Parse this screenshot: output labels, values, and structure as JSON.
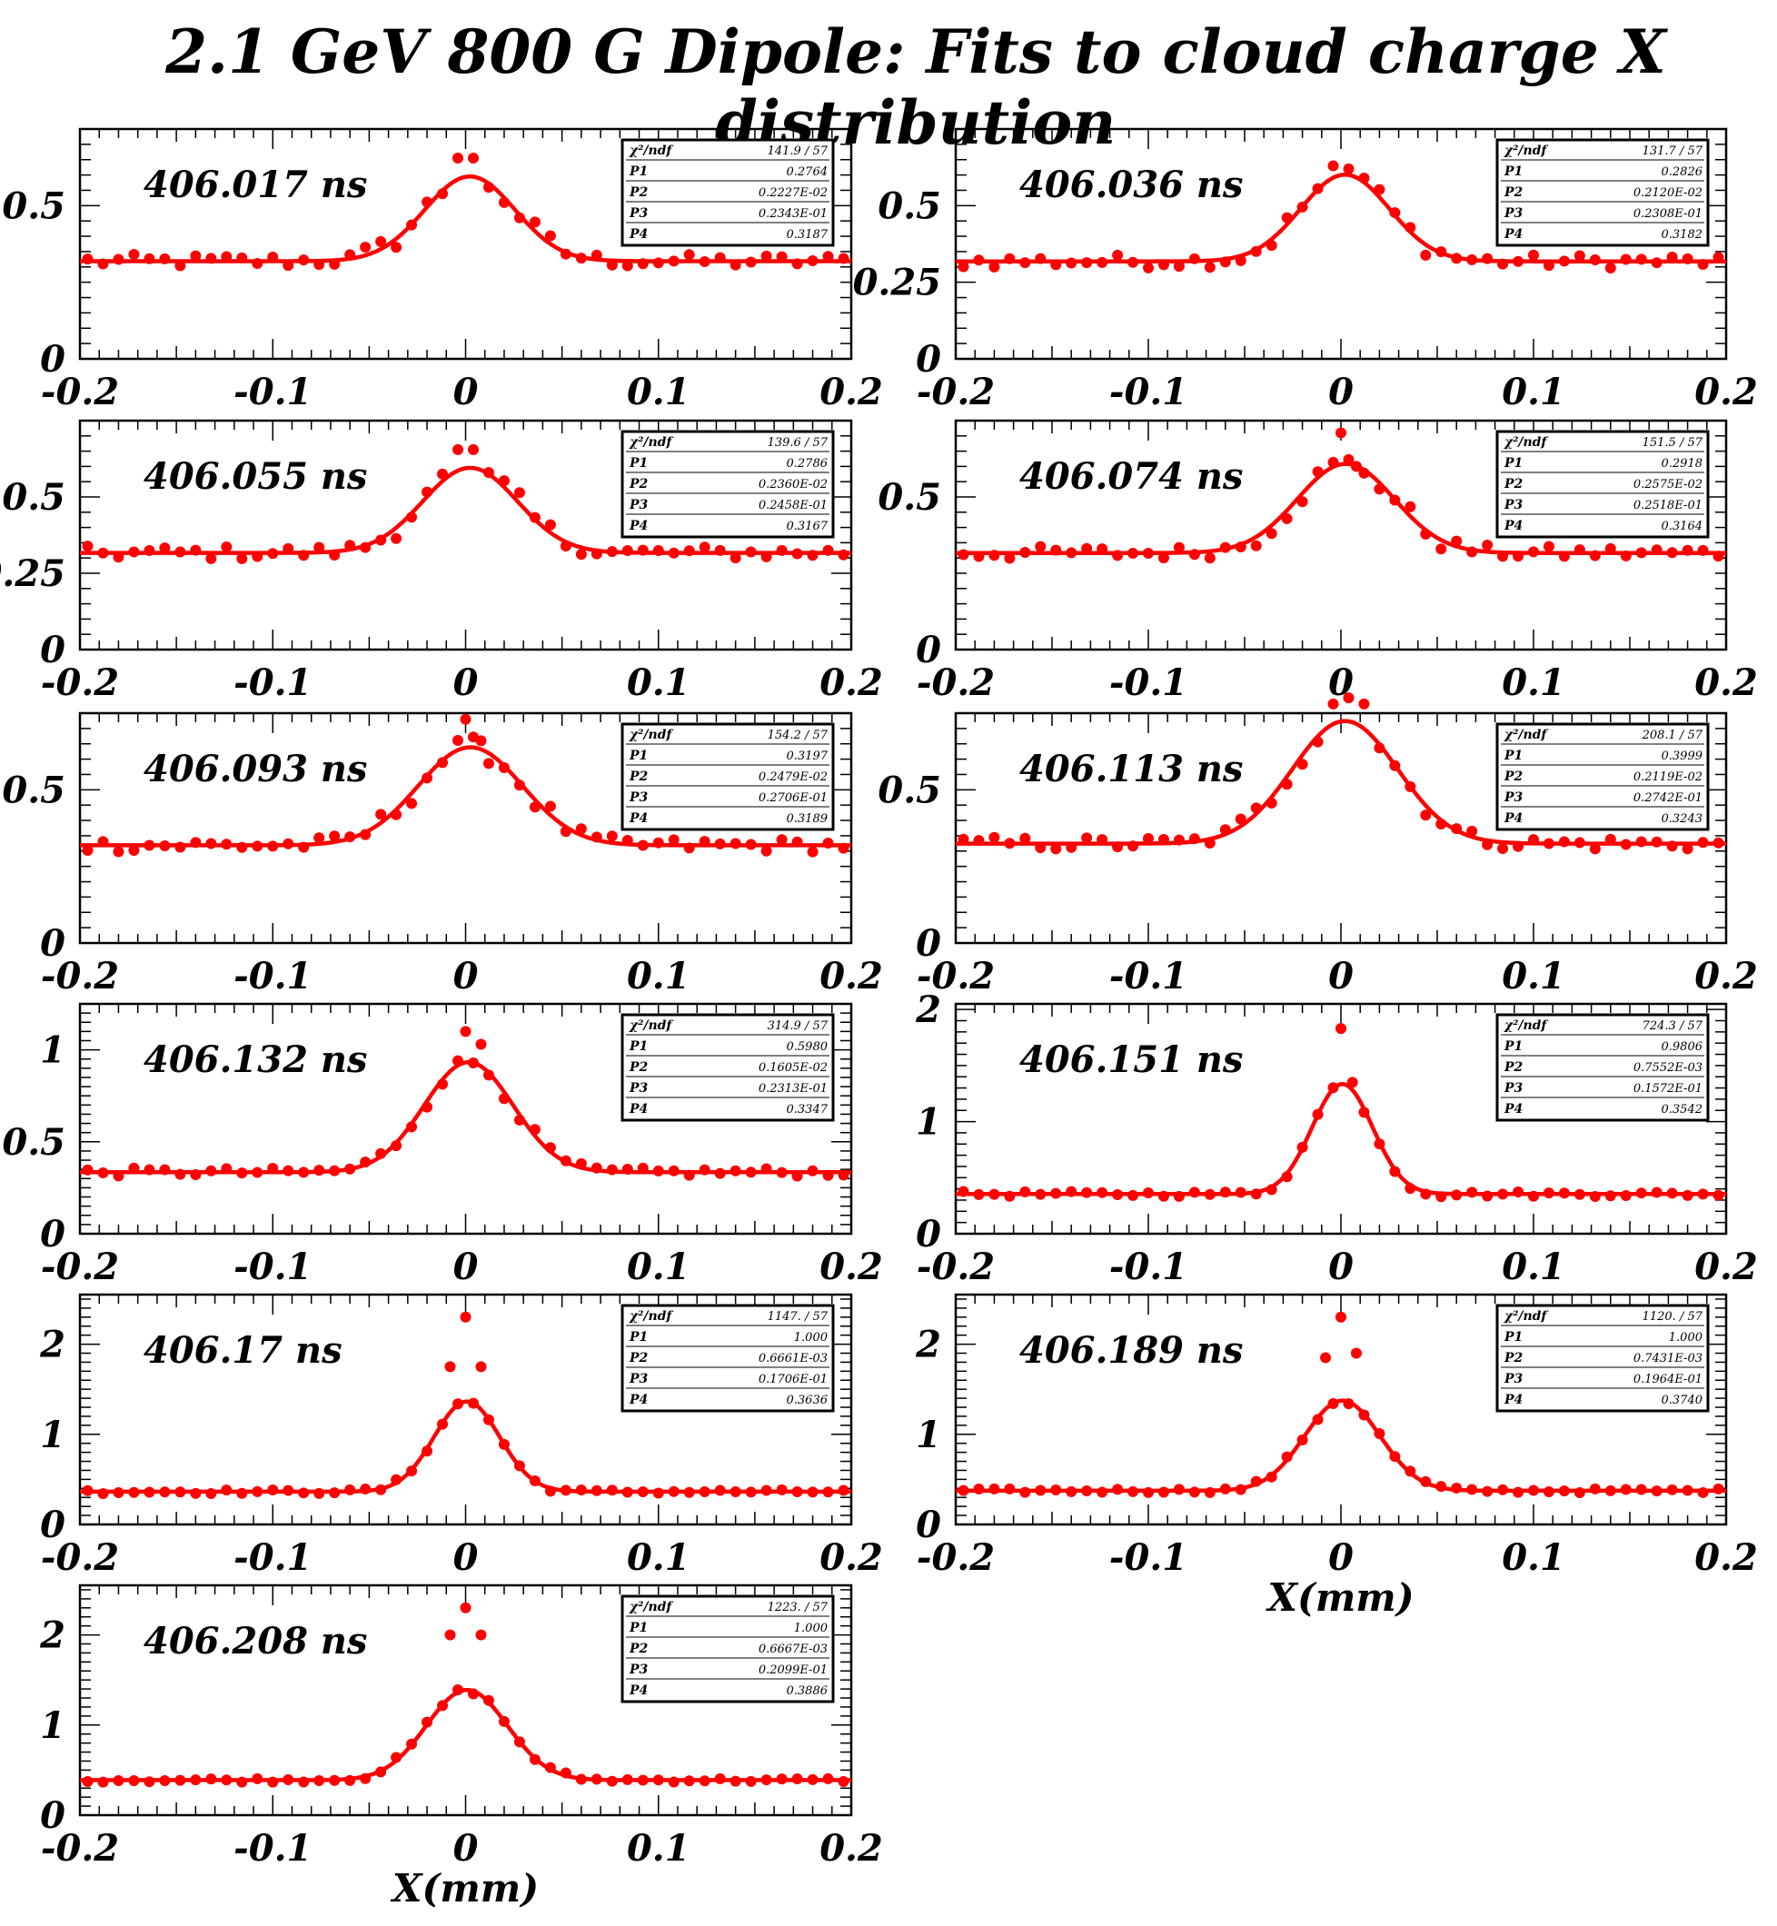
{
  "title": "2.1 GeV 800 G Dipole: Fits to cloud charge X distribution",
  "colors": {
    "data": "#ff0000",
    "axis": "#000000"
  },
  "chart_data": [
    {
      "type": "scatter",
      "label": "406.017 ns",
      "xlabel": "",
      "xlim": [
        -0.2,
        0.2
      ],
      "ylim": [
        0,
        0.75
      ],
      "yticks": [
        0,
        0.5
      ],
      "xticks": [
        -0.2,
        -0.1,
        0,
        0.1,
        0.2
      ],
      "stats": {
        "chi2_label": "χ²/ndf",
        "chi2": "141.9",
        "ndf": "57",
        "P1": "0.2764",
        "P2": "0.2227E-02",
        "P3": "0.2343E-01",
        "P4": "0.3187"
      },
      "fit": {
        "amplitude": 0.2764,
        "mean": 0.002227,
        "sigma": 0.02343,
        "baseline": 0.3187
      },
      "peak_points": [
        [
          -0.004,
          0.655
        ],
        [
          0.004,
          0.655
        ],
        [
          0.012,
          0.56
        ]
      ]
    },
    {
      "type": "scatter",
      "label": "406.036 ns",
      "xlabel": "",
      "xlim": [
        -0.2,
        0.2
      ],
      "ylim": [
        0,
        0.75
      ],
      "yticks": [
        0,
        0.25,
        0.5
      ],
      "xticks": [
        -0.2,
        -0.1,
        0,
        0.1,
        0.2
      ],
      "stats": {
        "chi2_label": "χ²/ndf",
        "chi2": "131.7",
        "ndf": "57",
        "P1": "0.2826",
        "P2": "0.2120E-02",
        "P3": "0.2308E-01",
        "P4": "0.3182"
      },
      "fit": {
        "amplitude": 0.2826,
        "mean": 0.00212,
        "sigma": 0.02308,
        "baseline": 0.3182
      },
      "peak_points": [
        [
          -0.004,
          0.63
        ],
        [
          0.004,
          0.62
        ],
        [
          0.012,
          0.59
        ]
      ]
    },
    {
      "type": "scatter",
      "label": "406.055 ns",
      "xlabel": "",
      "xlim": [
        -0.2,
        0.2
      ],
      "ylim": [
        0,
        0.75
      ],
      "yticks": [
        0,
        0.25,
        0.5
      ],
      "xticks": [
        -0.2,
        -0.1,
        0,
        0.1,
        0.2
      ],
      "stats": {
        "chi2_label": "χ²/ndf",
        "chi2": "139.6",
        "ndf": "57",
        "P1": "0.2786",
        "P2": "0.2360E-02",
        "P3": "0.2458E-01",
        "P4": "0.3167"
      },
      "fit": {
        "amplitude": 0.2786,
        "mean": 0.00236,
        "sigma": 0.02458,
        "baseline": 0.3167
      },
      "peak_points": [
        [
          -0.004,
          0.655
        ],
        [
          0.004,
          0.655
        ],
        [
          0.012,
          0.58
        ]
      ]
    },
    {
      "type": "scatter",
      "label": "406.074 ns",
      "xlabel": "",
      "xlim": [
        -0.2,
        0.2
      ],
      "ylim": [
        0,
        0.75
      ],
      "yticks": [
        0,
        0.5
      ],
      "xticks": [
        -0.2,
        -0.1,
        0,
        0.1,
        0.2
      ],
      "stats": {
        "chi2_label": "χ²/ndf",
        "chi2": "151.5",
        "ndf": "57",
        "P1": "0.2918",
        "P2": "0.2575E-02",
        "P3": "0.2518E-01",
        "P4": "0.3164"
      },
      "fit": {
        "amplitude": 0.2918,
        "mean": 0.002575,
        "sigma": 0.02518,
        "baseline": 0.3164
      },
      "peak_points": [
        [
          0.0,
          0.71
        ],
        [
          0.008,
          0.6
        ]
      ]
    },
    {
      "type": "scatter",
      "label": "406.093 ns",
      "xlabel": "",
      "xlim": [
        -0.2,
        0.2
      ],
      "ylim": [
        0,
        0.75
      ],
      "yticks": [
        0,
        0.5
      ],
      "xticks": [
        -0.2,
        -0.1,
        0,
        0.1,
        0.2
      ],
      "stats": {
        "chi2_label": "χ²/ndf",
        "chi2": "154.2",
        "ndf": "57",
        "P1": "0.3197",
        "P2": "0.2479E-02",
        "P3": "0.2706E-01",
        "P4": "0.3189"
      },
      "fit": {
        "amplitude": 0.3197,
        "mean": 0.002479,
        "sigma": 0.02706,
        "baseline": 0.3189
      },
      "peak_points": [
        [
          0.0,
          0.73
        ],
        [
          0.008,
          0.66
        ]
      ]
    },
    {
      "type": "scatter",
      "label": "406.113 ns",
      "xlabel": "",
      "xlim": [
        -0.2,
        0.2
      ],
      "ylim": [
        0,
        0.75
      ],
      "yticks": [
        0,
        0.5
      ],
      "xticks": [
        -0.2,
        -0.1,
        0,
        0.1,
        0.2
      ],
      "stats": {
        "chi2_label": "χ²/ndf",
        "chi2": "208.1",
        "ndf": "57",
        "P1": "0.3999",
        "P2": "0.2119E-02",
        "P3": "0.2742E-01",
        "P4": "0.3243"
      },
      "fit": {
        "amplitude": 0.3999,
        "mean": 0.002119,
        "sigma": 0.02742,
        "baseline": 0.3243
      },
      "peak_points": [
        [
          -0.004,
          0.78
        ],
        [
          0.004,
          0.8
        ],
        [
          0.012,
          0.78
        ]
      ]
    },
    {
      "type": "scatter",
      "label": "406.132 ns",
      "xlabel": "",
      "xlim": [
        -0.2,
        0.2
      ],
      "ylim": [
        0,
        1.25
      ],
      "yticks": [
        0,
        0.5,
        1
      ],
      "xticks": [
        -0.2,
        -0.1,
        0,
        0.1,
        0.2
      ],
      "stats": {
        "chi2_label": "χ²/ndf",
        "chi2": "314.9",
        "ndf": "57",
        "P1": "0.5980",
        "P2": "0.1605E-02",
        "P3": "0.2313E-01",
        "P4": "0.3347"
      },
      "fit": {
        "amplitude": 0.598,
        "mean": 0.001605,
        "sigma": 0.02313,
        "baseline": 0.3347
      },
      "peak_points": [
        [
          0.0,
          1.1
        ],
        [
          0.008,
          1.03
        ]
      ]
    },
    {
      "type": "scatter",
      "label": "406.151 ns",
      "xlabel": "",
      "xlim": [
        -0.2,
        0.2
      ],
      "ylim": [
        0,
        2.05
      ],
      "yticks": [
        0,
        1,
        2
      ],
      "xticks": [
        -0.2,
        -0.1,
        0,
        0.1,
        0.2
      ],
      "stats": {
        "chi2_label": "χ²/ndf",
        "chi2": "724.3",
        "ndf": "57",
        "P1": "0.9806",
        "P2": "0.7552E-03",
        "P3": "0.1572E-01",
        "P4": "0.3542"
      },
      "fit": {
        "amplitude": 0.9806,
        "mean": 0.000755,
        "sigma": 0.01572,
        "baseline": 0.3542
      },
      "peak_points": [
        [
          0.0,
          1.83
        ],
        [
          0.006,
          1.35
        ]
      ]
    },
    {
      "type": "scatter",
      "label": "406.17 ns",
      "xlabel": "",
      "xlim": [
        -0.2,
        0.2
      ],
      "ylim": [
        0,
        2.55
      ],
      "yticks": [
        0,
        1,
        2
      ],
      "xticks": [
        -0.2,
        -0.1,
        0,
        0.1,
        0.2
      ],
      "stats": {
        "chi2_label": "χ²/ndf",
        "chi2": "1147.",
        "ndf": "57",
        "P1": "1.000",
        "P2": "0.6661E-03",
        "P3": "0.1706E-01",
        "P4": "0.3636"
      },
      "fit": {
        "amplitude": 1.0,
        "mean": 0.000666,
        "sigma": 0.01706,
        "baseline": 0.3636
      },
      "peak_points": [
        [
          0.0,
          2.3
        ],
        [
          -0.008,
          1.75
        ],
        [
          0.008,
          1.75
        ]
      ]
    },
    {
      "type": "scatter",
      "label": "406.189 ns",
      "xlabel": "X(mm)",
      "xlim": [
        -0.2,
        0.2
      ],
      "ylim": [
        0,
        2.55
      ],
      "yticks": [
        0,
        1,
        2
      ],
      "xticks": [
        -0.2,
        -0.1,
        0,
        0.1,
        0.2
      ],
      "stats": {
        "chi2_label": "χ²/ndf",
        "chi2": "1120.",
        "ndf": "57",
        "P1": "1.000",
        "P2": "0.7431E-03",
        "P3": "0.1964E-01",
        "P4": "0.3740"
      },
      "fit": {
        "amplitude": 1.0,
        "mean": 0.000743,
        "sigma": 0.01964,
        "baseline": 0.374
      },
      "peak_points": [
        [
          0.0,
          2.3
        ],
        [
          -0.008,
          1.85
        ],
        [
          0.008,
          1.9
        ]
      ]
    },
    {
      "type": "scatter",
      "label": "406.208 ns",
      "xlabel": "X(mm)",
      "xlim": [
        -0.2,
        0.2
      ],
      "ylim": [
        0,
        2.55
      ],
      "yticks": [
        0,
        1,
        2
      ],
      "xticks": [
        -0.2,
        -0.1,
        0,
        0.1,
        0.2
      ],
      "stats": {
        "chi2_label": "χ²/ndf",
        "chi2": "1223.",
        "ndf": "57",
        "P1": "1.000",
        "P2": "0.6667E-03",
        "P3": "0.2099E-01",
        "P4": "0.3886"
      },
      "fit": {
        "amplitude": 1.0,
        "mean": 0.000667,
        "sigma": 0.02099,
        "baseline": 0.3886
      },
      "peak_points": [
        [
          0.0,
          2.3
        ],
        [
          -0.008,
          2.0
        ],
        [
          0.008,
          2.0
        ]
      ]
    }
  ]
}
